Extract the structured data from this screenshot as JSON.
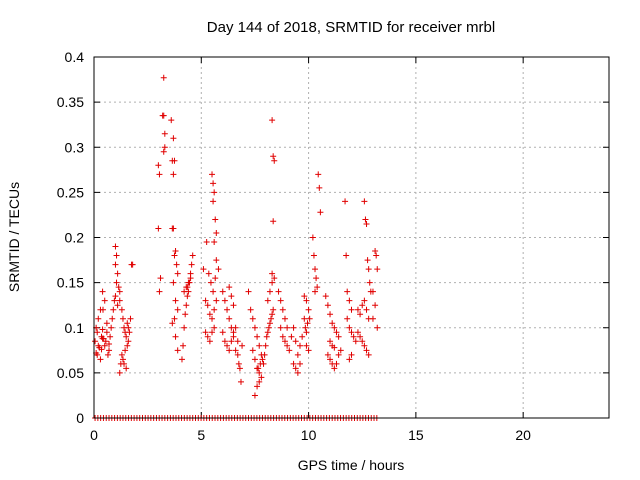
{
  "chart_data": {
    "type": "scatter",
    "title": "Day 144 of 2018, SRMTID for receiver mrbl",
    "xlabel": "GPS time / hours",
    "ylabel": "SRMTID / TECUs",
    "xlim": [
      0,
      24
    ],
    "ylim": [
      0,
      0.4
    ],
    "xticks": [
      "0",
      "5",
      "10",
      "15",
      "20"
    ],
    "yticks": [
      "0",
      "0.05",
      "0.1",
      "0.15",
      "0.2",
      "0.25",
      "0.3",
      "0.35",
      "0.4"
    ],
    "grid": true,
    "marker": "+",
    "color": "#e00000",
    "series": [
      {
        "points": [
          [
            0.05,
            0.085
          ],
          [
            0.1,
            0.072
          ],
          [
            0.15,
            0.095
          ],
          [
            0.2,
            0.11
          ],
          [
            0.25,
            0.078
          ],
          [
            0.3,
            0.065
          ],
          [
            0.35,
            0.09
          ],
          [
            0.1,
            0.1
          ],
          [
            0.2,
            0.08
          ],
          [
            0.3,
            0.12
          ],
          [
            0.4,
            0.088
          ],
          [
            0.15,
            0.07
          ],
          [
            0.5,
            0.08
          ],
          [
            0.6,
            0.095
          ],
          [
            0.7,
            0.075
          ],
          [
            0.8,
            0.1
          ],
          [
            0.9,
            0.12
          ],
          [
            0.55,
            0.085
          ],
          [
            0.65,
            0.07
          ],
          [
            0.75,
            0.09
          ],
          [
            0.85,
            0.11
          ],
          [
            0.95,
            0.13
          ],
          [
            0.6,
            0.105
          ],
          [
            0.7,
            0.082
          ],
          [
            0.4,
            0.14
          ],
          [
            0.5,
            0.13
          ],
          [
            0.42,
            0.12
          ],
          [
            0.4,
            0.098
          ],
          [
            0.45,
            0.088
          ],
          [
            0.35,
            0.076
          ],
          [
            1.0,
            0.19
          ],
          [
            1.05,
            0.18
          ],
          [
            1.0,
            0.17
          ],
          [
            1.1,
            0.16
          ],
          [
            1.05,
            0.15
          ],
          [
            1.15,
            0.145
          ],
          [
            1.2,
            0.14
          ],
          [
            1.0,
            0.135
          ],
          [
            1.1,
            0.125
          ],
          [
            1.2,
            0.13
          ],
          [
            1.3,
            0.12
          ],
          [
            1.35,
            0.11
          ],
          [
            1.4,
            0.1
          ],
          [
            1.45,
            0.095
          ],
          [
            1.5,
            0.09
          ],
          [
            1.55,
            0.105
          ],
          [
            1.6,
            0.1
          ],
          [
            1.3,
            0.07
          ],
          [
            1.35,
            0.065
          ],
          [
            1.4,
            0.06
          ],
          [
            1.5,
            0.055
          ],
          [
            1.45,
            0.075
          ],
          [
            1.55,
            0.08
          ],
          [
            1.2,
            0.05
          ],
          [
            1.25,
            0.06
          ],
          [
            1.6,
            0.085
          ],
          [
            1.65,
            0.095
          ],
          [
            1.7,
            0.11
          ],
          [
            1.8,
            0.17
          ],
          [
            1.75,
            0.17
          ],
          [
            3.0,
            0.28
          ],
          [
            3.05,
            0.27
          ],
          [
            3.0,
            0.21
          ],
          [
            3.1,
            0.155
          ],
          [
            3.05,
            0.14
          ],
          [
            3.2,
            0.335
          ],
          [
            3.25,
            0.335
          ],
          [
            3.3,
            0.315
          ],
          [
            3.25,
            0.295
          ],
          [
            3.3,
            0.3
          ],
          [
            3.25,
            0.377
          ],
          [
            3.6,
            0.33
          ],
          [
            3.7,
            0.31
          ],
          [
            3.65,
            0.285
          ],
          [
            3.75,
            0.285
          ],
          [
            3.7,
            0.27
          ],
          [
            3.65,
            0.21
          ],
          [
            3.7,
            0.21
          ],
          [
            3.8,
            0.185
          ],
          [
            3.75,
            0.18
          ],
          [
            3.85,
            0.17
          ],
          [
            3.9,
            0.16
          ],
          [
            3.7,
            0.15
          ],
          [
            3.8,
            0.13
          ],
          [
            3.9,
            0.12
          ],
          [
            3.75,
            0.11
          ],
          [
            3.65,
            0.105
          ],
          [
            3.8,
            0.09
          ],
          [
            3.9,
            0.075
          ],
          [
            4.1,
            0.065
          ],
          [
            4.15,
            0.08
          ],
          [
            4.2,
            0.1
          ],
          [
            4.25,
            0.115
          ],
          [
            4.3,
            0.125
          ],
          [
            4.35,
            0.135
          ],
          [
            4.4,
            0.14
          ],
          [
            4.45,
            0.15
          ],
          [
            4.5,
            0.16
          ],
          [
            4.55,
            0.17
          ],
          [
            4.6,
            0.18
          ],
          [
            4.2,
            0.14
          ],
          [
            4.3,
            0.145
          ],
          [
            4.4,
            0.15
          ],
          [
            4.5,
            0.155
          ],
          [
            4.35,
            0.145
          ],
          [
            5.1,
            0.165
          ],
          [
            5.2,
            0.13
          ],
          [
            5.3,
            0.125
          ],
          [
            5.4,
            0.115
          ],
          [
            5.5,
            0.11
          ],
          [
            5.6,
            0.12
          ],
          [
            5.7,
            0.13
          ],
          [
            5.2,
            0.095
          ],
          [
            5.3,
            0.09
          ],
          [
            5.4,
            0.085
          ],
          [
            5.5,
            0.095
          ],
          [
            5.6,
            0.1
          ],
          [
            5.25,
            0.195
          ],
          [
            5.35,
            0.16
          ],
          [
            5.45,
            0.15
          ],
          [
            5.55,
            0.14
          ],
          [
            5.5,
            0.27
          ],
          [
            5.55,
            0.26
          ],
          [
            5.6,
            0.25
          ],
          [
            5.55,
            0.24
          ],
          [
            5.65,
            0.22
          ],
          [
            5.7,
            0.205
          ],
          [
            5.6,
            0.195
          ],
          [
            5.7,
            0.175
          ],
          [
            5.8,
            0.165
          ],
          [
            5.65,
            0.155
          ],
          [
            6.0,
            0.14
          ],
          [
            6.1,
            0.13
          ],
          [
            6.2,
            0.12
          ],
          [
            6.3,
            0.11
          ],
          [
            6.4,
            0.1
          ],
          [
            6.5,
            0.09
          ],
          [
            6.0,
            0.095
          ],
          [
            6.1,
            0.085
          ],
          [
            6.2,
            0.08
          ],
          [
            6.3,
            0.075
          ],
          [
            6.4,
            0.085
          ],
          [
            6.5,
            0.095
          ],
          [
            6.6,
            0.1
          ],
          [
            6.7,
            0.07
          ],
          [
            6.75,
            0.06
          ],
          [
            6.8,
            0.055
          ],
          [
            6.85,
            0.04
          ],
          [
            6.7,
            0.085
          ],
          [
            6.6,
            0.075
          ],
          [
            6.9,
            0.08
          ],
          [
            6.3,
            0.145
          ],
          [
            6.4,
            0.135
          ],
          [
            6.5,
            0.125
          ],
          [
            7.2,
            0.14
          ],
          [
            7.3,
            0.12
          ],
          [
            7.4,
            0.11
          ],
          [
            7.5,
            0.1
          ],
          [
            7.6,
            0.09
          ],
          [
            7.7,
            0.08
          ],
          [
            7.8,
            0.07
          ],
          [
            7.9,
            0.06
          ],
          [
            7.4,
            0.075
          ],
          [
            7.5,
            0.065
          ],
          [
            7.6,
            0.055
          ],
          [
            7.7,
            0.05
          ],
          [
            7.8,
            0.045
          ],
          [
            7.5,
            0.025
          ],
          [
            7.6,
            0.035
          ],
          [
            7.7,
            0.04
          ],
          [
            7.65,
            0.055
          ],
          [
            7.75,
            0.06
          ],
          [
            7.85,
            0.065
          ],
          [
            7.95,
            0.07
          ],
          [
            8.0,
            0.08
          ],
          [
            8.05,
            0.09
          ],
          [
            8.1,
            0.095
          ],
          [
            8.15,
            0.1
          ],
          [
            8.2,
            0.105
          ],
          [
            8.25,
            0.11
          ],
          [
            8.3,
            0.115
          ],
          [
            8.35,
            0.12
          ],
          [
            8.1,
            0.13
          ],
          [
            8.2,
            0.14
          ],
          [
            8.3,
            0.15
          ],
          [
            8.3,
            0.33
          ],
          [
            8.35,
            0.29
          ],
          [
            8.4,
            0.285
          ],
          [
            8.35,
            0.218
          ],
          [
            8.3,
            0.16
          ],
          [
            8.4,
            0.155
          ],
          [
            8.6,
            0.14
          ],
          [
            8.7,
            0.13
          ],
          [
            8.8,
            0.12
          ],
          [
            8.9,
            0.11
          ],
          [
            9.0,
            0.1
          ],
          [
            8.7,
            0.1
          ],
          [
            8.8,
            0.09
          ],
          [
            8.9,
            0.085
          ],
          [
            9.0,
            0.08
          ],
          [
            9.1,
            0.075
          ],
          [
            9.2,
            0.09
          ],
          [
            9.3,
            0.1
          ],
          [
            9.4,
            0.085
          ],
          [
            9.5,
            0.07
          ],
          [
            9.6,
            0.06
          ],
          [
            9.5,
            0.05
          ],
          [
            9.4,
            0.055
          ],
          [
            9.3,
            0.06
          ],
          [
            9.6,
            0.08
          ],
          [
            9.7,
            0.09
          ],
          [
            9.8,
            0.11
          ],
          [
            9.85,
            0.1
          ],
          [
            9.9,
            0.095
          ],
          [
            9.95,
            0.105
          ],
          [
            9.8,
            0.135
          ],
          [
            9.9,
            0.13
          ],
          [
            10.0,
            0.12
          ],
          [
            10.05,
            0.11
          ],
          [
            9.9,
            0.08
          ],
          [
            10.0,
            0.075
          ],
          [
            10.2,
            0.2
          ],
          [
            10.25,
            0.18
          ],
          [
            10.3,
            0.165
          ],
          [
            10.35,
            0.155
          ],
          [
            10.4,
            0.145
          ],
          [
            10.3,
            0.14
          ],
          [
            10.45,
            0.27
          ],
          [
            10.5,
            0.255
          ],
          [
            10.55,
            0.228
          ],
          [
            10.8,
            0.135
          ],
          [
            10.9,
            0.125
          ],
          [
            11.0,
            0.115
          ],
          [
            11.1,
            0.105
          ],
          [
            11.2,
            0.1
          ],
          [
            11.3,
            0.095
          ],
          [
            11.4,
            0.09
          ],
          [
            10.9,
            0.07
          ],
          [
            11.0,
            0.065
          ],
          [
            11.1,
            0.06
          ],
          [
            11.2,
            0.055
          ],
          [
            11.3,
            0.06
          ],
          [
            11.4,
            0.07
          ],
          [
            11.5,
            0.075
          ],
          [
            11.0,
            0.085
          ],
          [
            11.1,
            0.08
          ],
          [
            11.2,
            0.078
          ],
          [
            11.7,
            0.24
          ],
          [
            11.75,
            0.18
          ],
          [
            11.8,
            0.14
          ],
          [
            11.9,
            0.13
          ],
          [
            12.0,
            0.12
          ],
          [
            11.8,
            0.11
          ],
          [
            11.9,
            0.1
          ],
          [
            12.0,
            0.095
          ],
          [
            12.1,
            0.09
          ],
          [
            12.2,
            0.085
          ],
          [
            11.9,
            0.065
          ],
          [
            12.0,
            0.07
          ],
          [
            12.3,
            0.12
          ],
          [
            12.4,
            0.115
          ],
          [
            12.5,
            0.125
          ],
          [
            12.6,
            0.13
          ],
          [
            12.7,
            0.12
          ],
          [
            12.8,
            0.11
          ],
          [
            12.3,
            0.095
          ],
          [
            12.4,
            0.09
          ],
          [
            12.5,
            0.085
          ],
          [
            12.6,
            0.08
          ],
          [
            12.7,
            0.075
          ],
          [
            12.8,
            0.07
          ],
          [
            12.6,
            0.24
          ],
          [
            12.65,
            0.22
          ],
          [
            12.7,
            0.215
          ],
          [
            12.75,
            0.175
          ],
          [
            12.8,
            0.165
          ],
          [
            12.85,
            0.15
          ],
          [
            12.9,
            0.14
          ],
          [
            13.1,
            0.185
          ],
          [
            13.15,
            0.18
          ],
          [
            13.2,
            0.165
          ],
          [
            13.0,
            0.14
          ],
          [
            13.1,
            0.125
          ],
          [
            13.0,
            0.11
          ],
          [
            13.2,
            0.1
          ]
        ]
      }
    ]
  }
}
